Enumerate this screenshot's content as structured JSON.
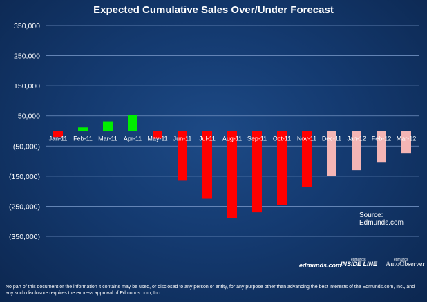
{
  "chart_data": {
    "type": "bar",
    "title": "Expected Cumulative Sales Over/Under Forecast",
    "categories": [
      "Jan-11",
      "Feb-11",
      "Mar-11",
      "Apr-11",
      "May-11",
      "Jun-11",
      "Jul-11",
      "Aug-11",
      "Sep-11",
      "Oct-11",
      "Nov-11",
      "Dec-11",
      "Jan-12",
      "Feb-12",
      "Mar-12"
    ],
    "values": [
      -20000,
      12000,
      32000,
      52000,
      -25000,
      -165000,
      -225000,
      -290000,
      -270000,
      -245000,
      -185000,
      -150000,
      -130000,
      -105000,
      -75000
    ],
    "bar_colors": [
      "#ff0000",
      "#00ee00",
      "#00ee00",
      "#00ee00",
      "#ff0000",
      "#ff0000",
      "#ff0000",
      "#ff0000",
      "#ff0000",
      "#ff0000",
      "#ff0000",
      "#f4b5b5",
      "#f4b5b5",
      "#f4b5b5",
      "#f4b5b5"
    ],
    "ylim": [
      -350000,
      350000
    ],
    "yticks": [
      350000,
      250000,
      150000,
      50000,
      -50000,
      -150000,
      -250000,
      -350000
    ],
    "ytick_labels": [
      "350,000",
      "250,000",
      "150,000",
      "50,000",
      "(50,000)",
      "(150,000)",
      "(250,000)",
      "(350,000)"
    ],
    "xlabel": "",
    "ylabel": "",
    "grid": true
  },
  "source": "Source: Edmunds.com",
  "logos": {
    "edmunds": "edmunds.com",
    "insideline_small": "edmunds",
    "insideline": "INSIDE LINE",
    "autoobserver_small": "edmunds",
    "autoobserver": "AutoObserver"
  },
  "disclaimer": "No part of this document or the information it contains may be used, or disclosed to any person or entity, for any purpose other than advancing the best interests of the Edmunds.com, Inc., and any such disclosure requires the express approval of Edmunds.com, Inc."
}
